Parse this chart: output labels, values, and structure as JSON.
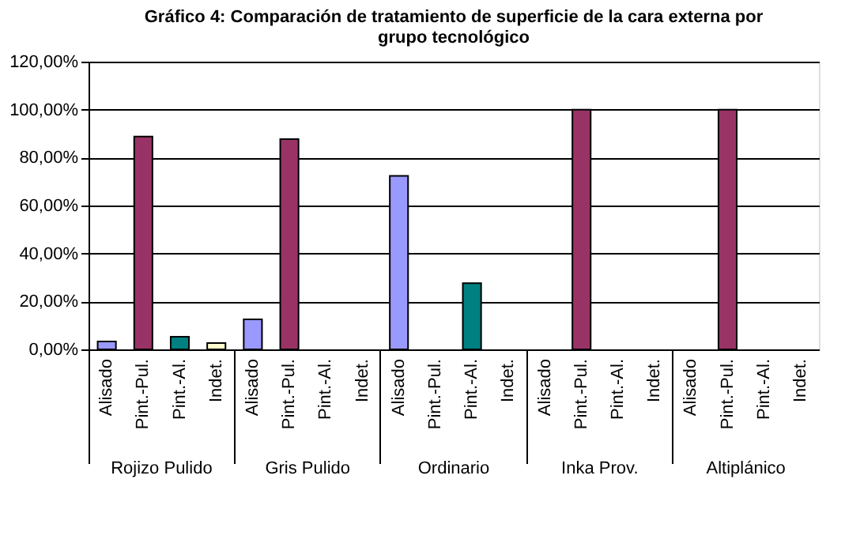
{
  "chart_data": {
    "type": "bar",
    "title": "Gráfico 4: Comparación de tratamiento de superficie de la cara externa por grupo tecnológico",
    "categories": [
      "Rojizo Pulido",
      "Gris Pulido",
      "Ordinario",
      "Inka Prov.",
      "Altiplánico"
    ],
    "series": [
      {
        "name": "Alisado",
        "color": "#9999ff",
        "values": [
          3.3,
          12.5,
          72.4,
          null,
          null
        ]
      },
      {
        "name": "Pint.-Pul.",
        "color": "#993366",
        "values": [
          88.8,
          87.7,
          null,
          100,
          100
        ]
      },
      {
        "name": "Pint.-Al.",
        "color": "#008080",
        "values": [
          5.3,
          null,
          27.6,
          null,
          null
        ]
      },
      {
        "name": "Indet.",
        "color": "#ffffcc",
        "values": [
          2.6,
          null,
          null,
          null,
          null
        ]
      }
    ],
    "ylim": [
      0,
      120
    ],
    "yticks": [
      {
        "value": 0,
        "label": "0,00%"
      },
      {
        "value": 20,
        "label": "20,00%"
      },
      {
        "value": 40,
        "label": "40,00%"
      },
      {
        "value": 60,
        "label": "60,00%"
      },
      {
        "value": 80,
        "label": "80,00%"
      },
      {
        "value": 100,
        "label": "100,00%"
      },
      {
        "value": 120,
        "label": "120,00%"
      }
    ],
    "grid": "y"
  }
}
